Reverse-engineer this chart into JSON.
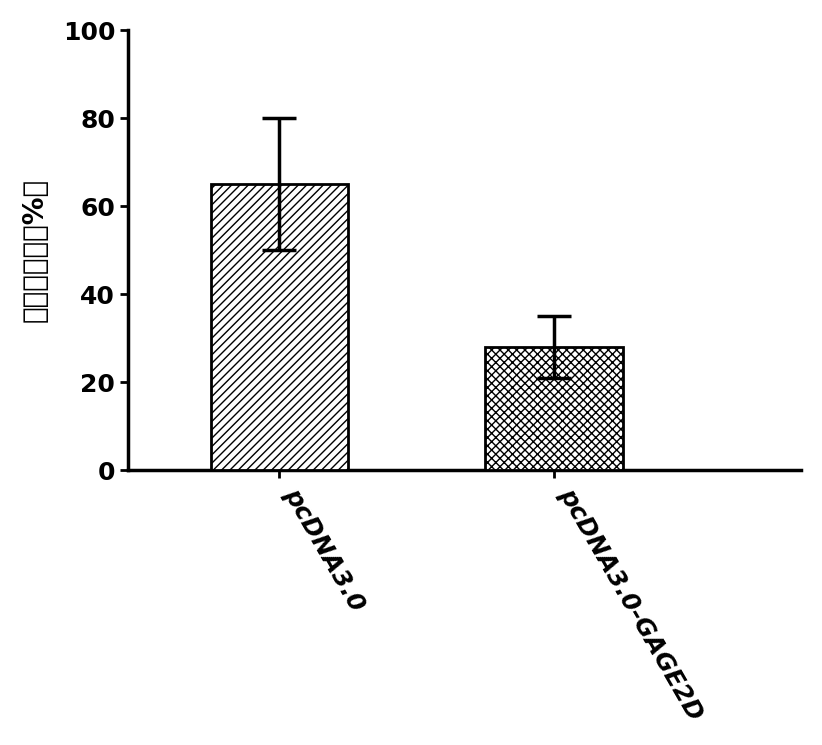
{
  "categories": [
    "pcDNA3.0",
    "pcDNA3.0-GAGE2D"
  ],
  "values": [
    65.0,
    28.0
  ],
  "errors_upper": [
    15.0,
    7.0
  ],
  "errors_lower": [
    15.0,
    7.0
  ],
  "ylabel": "细胞增殖率（%）",
  "ylim": [
    0,
    100
  ],
  "yticks": [
    0,
    20,
    40,
    60,
    80,
    100
  ],
  "bar_width": 0.5,
  "bar_positions": [
    1,
    2
  ],
  "xlim": [
    0.45,
    2.9
  ],
  "background_color": "#ffffff",
  "bar1_hatch": "////",
  "bar2_hatch": "xxxx",
  "bar_facecolor": "#ffffff",
  "bar_edgecolor": "#000000",
  "error_color": "#000000",
  "ylabel_fontsize": 20,
  "tick_fontsize": 18,
  "xlabel_rotation": -60,
  "xlabel_fontsize": 18,
  "bar_linewidth": 2.0,
  "spine_linewidth": 2.5,
  "error_linewidth": 2.5,
  "capsize": 12,
  "capthick": 2.5
}
